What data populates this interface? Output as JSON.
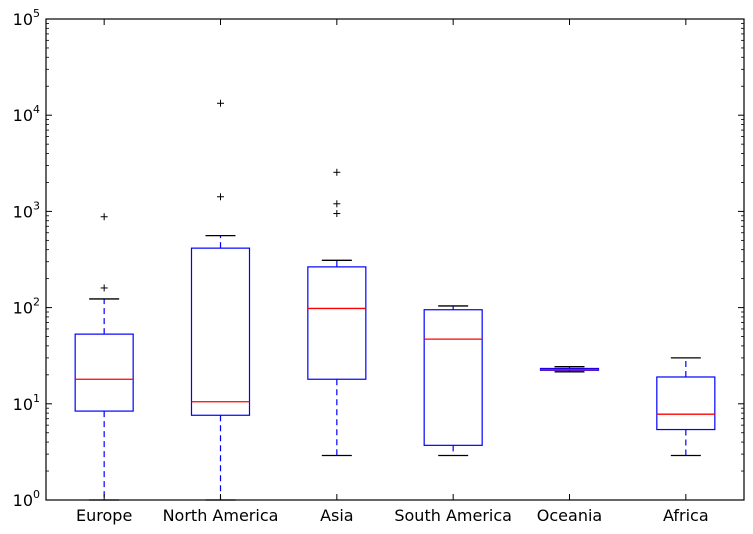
{
  "chart_data": {
    "type": "boxplot",
    "title": "",
    "xlabel": "",
    "ylabel": "",
    "yscale": "log",
    "ylim": [
      1,
      100000
    ],
    "grid": false,
    "y_ticks": [
      {
        "value": 1,
        "base": "10",
        "exp": "0"
      },
      {
        "value": 10,
        "base": "10",
        "exp": "1"
      },
      {
        "value": 100,
        "base": "10",
        "exp": "2"
      },
      {
        "value": 1000,
        "base": "10",
        "exp": "3"
      },
      {
        "value": 10000,
        "base": "10",
        "exp": "4"
      },
      {
        "value": 100000,
        "base": "10",
        "exp": "5"
      }
    ],
    "colors": {
      "box": "#0000ff",
      "median": "#ff0000",
      "whisker": "#0000ff",
      "cap": "#000000",
      "flier": "#000000",
      "axis": "#000000"
    },
    "categories": [
      "Europe",
      "North America",
      "Asia",
      "South America",
      "Oceania",
      "Africa"
    ],
    "boxes": [
      {
        "label": "Europe",
        "whisker_low": 1,
        "q1": 8.4,
        "median": 18,
        "q3": 53,
        "whisker_high": 123,
        "fliers": [
          160,
          880
        ]
      },
      {
        "label": "North America",
        "whisker_low": 1,
        "q1": 7.6,
        "median": 10.5,
        "q3": 415,
        "whisker_high": 560,
        "fliers": [
          1420,
          13300
        ]
      },
      {
        "label": "Asia",
        "whisker_low": 2.9,
        "q1": 18,
        "median": 98,
        "q3": 265,
        "whisker_high": 310,
        "fliers": [
          950,
          1200,
          2550
        ]
      },
      {
        "label": "South America",
        "whisker_low": 2.9,
        "q1": 3.7,
        "median": 47,
        "q3": 95,
        "whisker_high": 104,
        "fliers": []
      },
      {
        "label": "Oceania",
        "whisker_low": 21.5,
        "q1": 22.3,
        "median": 22.7,
        "q3": 23.3,
        "whisker_high": 24.3,
        "fliers": []
      },
      {
        "label": "Africa",
        "whisker_low": 2.9,
        "q1": 5.4,
        "median": 7.8,
        "q3": 19,
        "whisker_high": 30,
        "fliers": []
      }
    ]
  }
}
